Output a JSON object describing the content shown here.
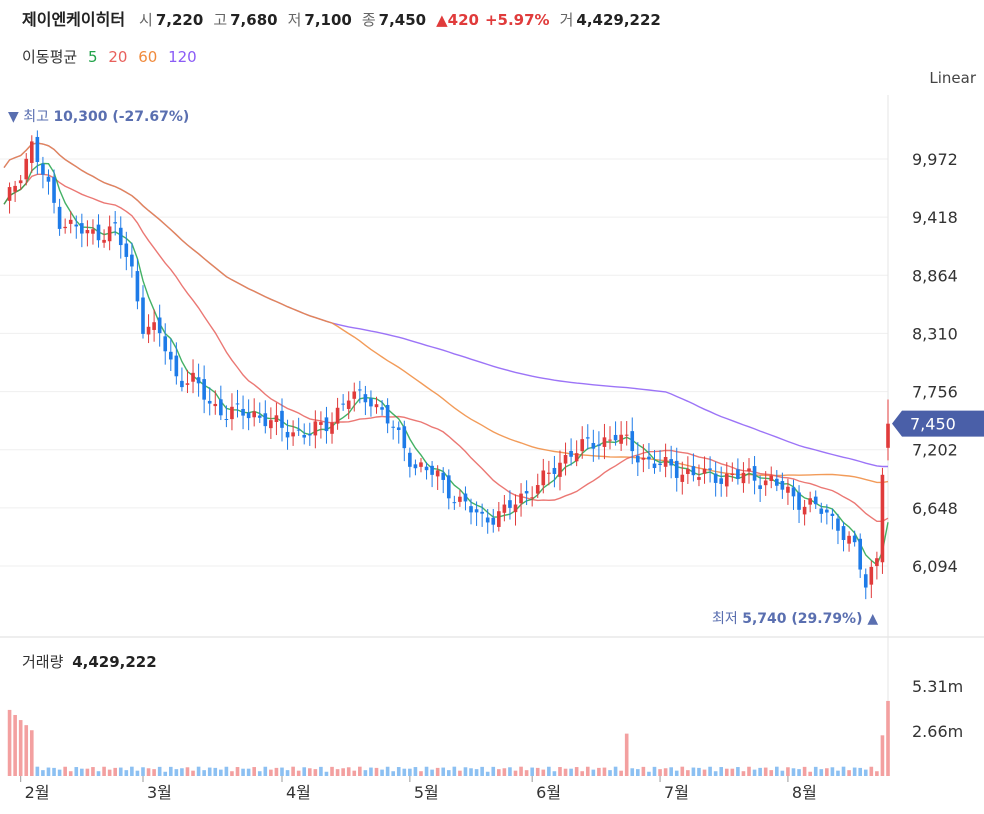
{
  "header": {
    "name": "제이엔케이히터",
    "open_label": "시",
    "open": "7,220",
    "high_label": "고",
    "high": "7,680",
    "low_label": "저",
    "low": "7,100",
    "close_label": "종",
    "close": "7,450",
    "change_arrow": "▲",
    "change": "420",
    "change_pct": "+5.97%",
    "volume_label": "거",
    "volume": "4,429,222"
  },
  "moving_average": {
    "label": "이동평균",
    "periods": [
      {
        "text": "5",
        "color": "#22a34a"
      },
      {
        "text": "20",
        "color": "#e8605c"
      },
      {
        "text": "60",
        "color": "#f08a3c"
      },
      {
        "text": "120",
        "color": "#8b5cf6"
      }
    ]
  },
  "scale_mode": "Linear",
  "annotations": {
    "high_text": "최고",
    "high_value": "10,300 (-27.67%)",
    "high_marker": "▼",
    "low_text": "최저",
    "low_value": "5,740 (29.79%)",
    "low_marker": "▲"
  },
  "price_tag": "7,450",
  "volume_panel": {
    "label": "거래량",
    "value": "4,429,222"
  },
  "colors": {
    "up": "#e03b3b",
    "down": "#1e7be8",
    "tag": "#4a5fa8",
    "annotation": "#5a6fb0"
  },
  "chart_data": {
    "type": "candlestick",
    "y_ticks": [
      "9,972",
      "9,418",
      "8,864",
      "8,310",
      "7,756",
      "7,202",
      "6,648",
      "6,094"
    ],
    "y_tick_values": [
      9972,
      9418,
      8864,
      8310,
      7756,
      7202,
      6648,
      6094
    ],
    "y_range": [
      5600,
      10500
    ],
    "volume_ticks": [
      "5.31m",
      "2.66m"
    ],
    "volume_tick_values": [
      5310000,
      2660000
    ],
    "month_labels": [
      "2월",
      "3월",
      "4월",
      "5월",
      "6월",
      "7월",
      "8월"
    ],
    "month_start_index": [
      3,
      25,
      50,
      73,
      95,
      118,
      141
    ],
    "num_days": 159,
    "candle_anchors": [
      [
        0,
        9500
      ],
      [
        5,
        10100
      ],
      [
        10,
        9400
      ],
      [
        15,
        9250
      ],
      [
        20,
        9300
      ],
      [
        23,
        8900
      ],
      [
        25,
        8400
      ],
      [
        28,
        8300
      ],
      [
        31,
        7900
      ],
      [
        34,
        7850
      ],
      [
        37,
        7650
      ],
      [
        40,
        7550
      ],
      [
        45,
        7550
      ],
      [
        50,
        7400
      ],
      [
        55,
        7350
      ],
      [
        58,
        7450
      ],
      [
        62,
        7700
      ],
      [
        66,
        7700
      ],
      [
        70,
        7400
      ],
      [
        74,
        7050
      ],
      [
        78,
        6950
      ],
      [
        82,
        6700
      ],
      [
        86,
        6550
      ],
      [
        90,
        6600
      ],
      [
        94,
        6800
      ],
      [
        98,
        6950
      ],
      [
        102,
        7200
      ],
      [
        106,
        7250
      ],
      [
        110,
        7350
      ],
      [
        114,
        7150
      ],
      [
        118,
        7050
      ],
      [
        122,
        7000
      ],
      [
        126,
        6950
      ],
      [
        130,
        6950
      ],
      [
        134,
        6950
      ],
      [
        138,
        6900
      ],
      [
        142,
        6750
      ],
      [
        146,
        6650
      ],
      [
        150,
        6500
      ],
      [
        153,
        6250
      ],
      [
        155,
        5900
      ],
      [
        157,
        6200
      ],
      [
        158,
        7050
      ],
      [
        159,
        7450
      ]
    ],
    "last_candle": {
      "open": 7220,
      "high": 7680,
      "low": 7100,
      "close": 7450
    },
    "period_high": 10300,
    "period_low": 5740,
    "last_volume": 4429222
  }
}
